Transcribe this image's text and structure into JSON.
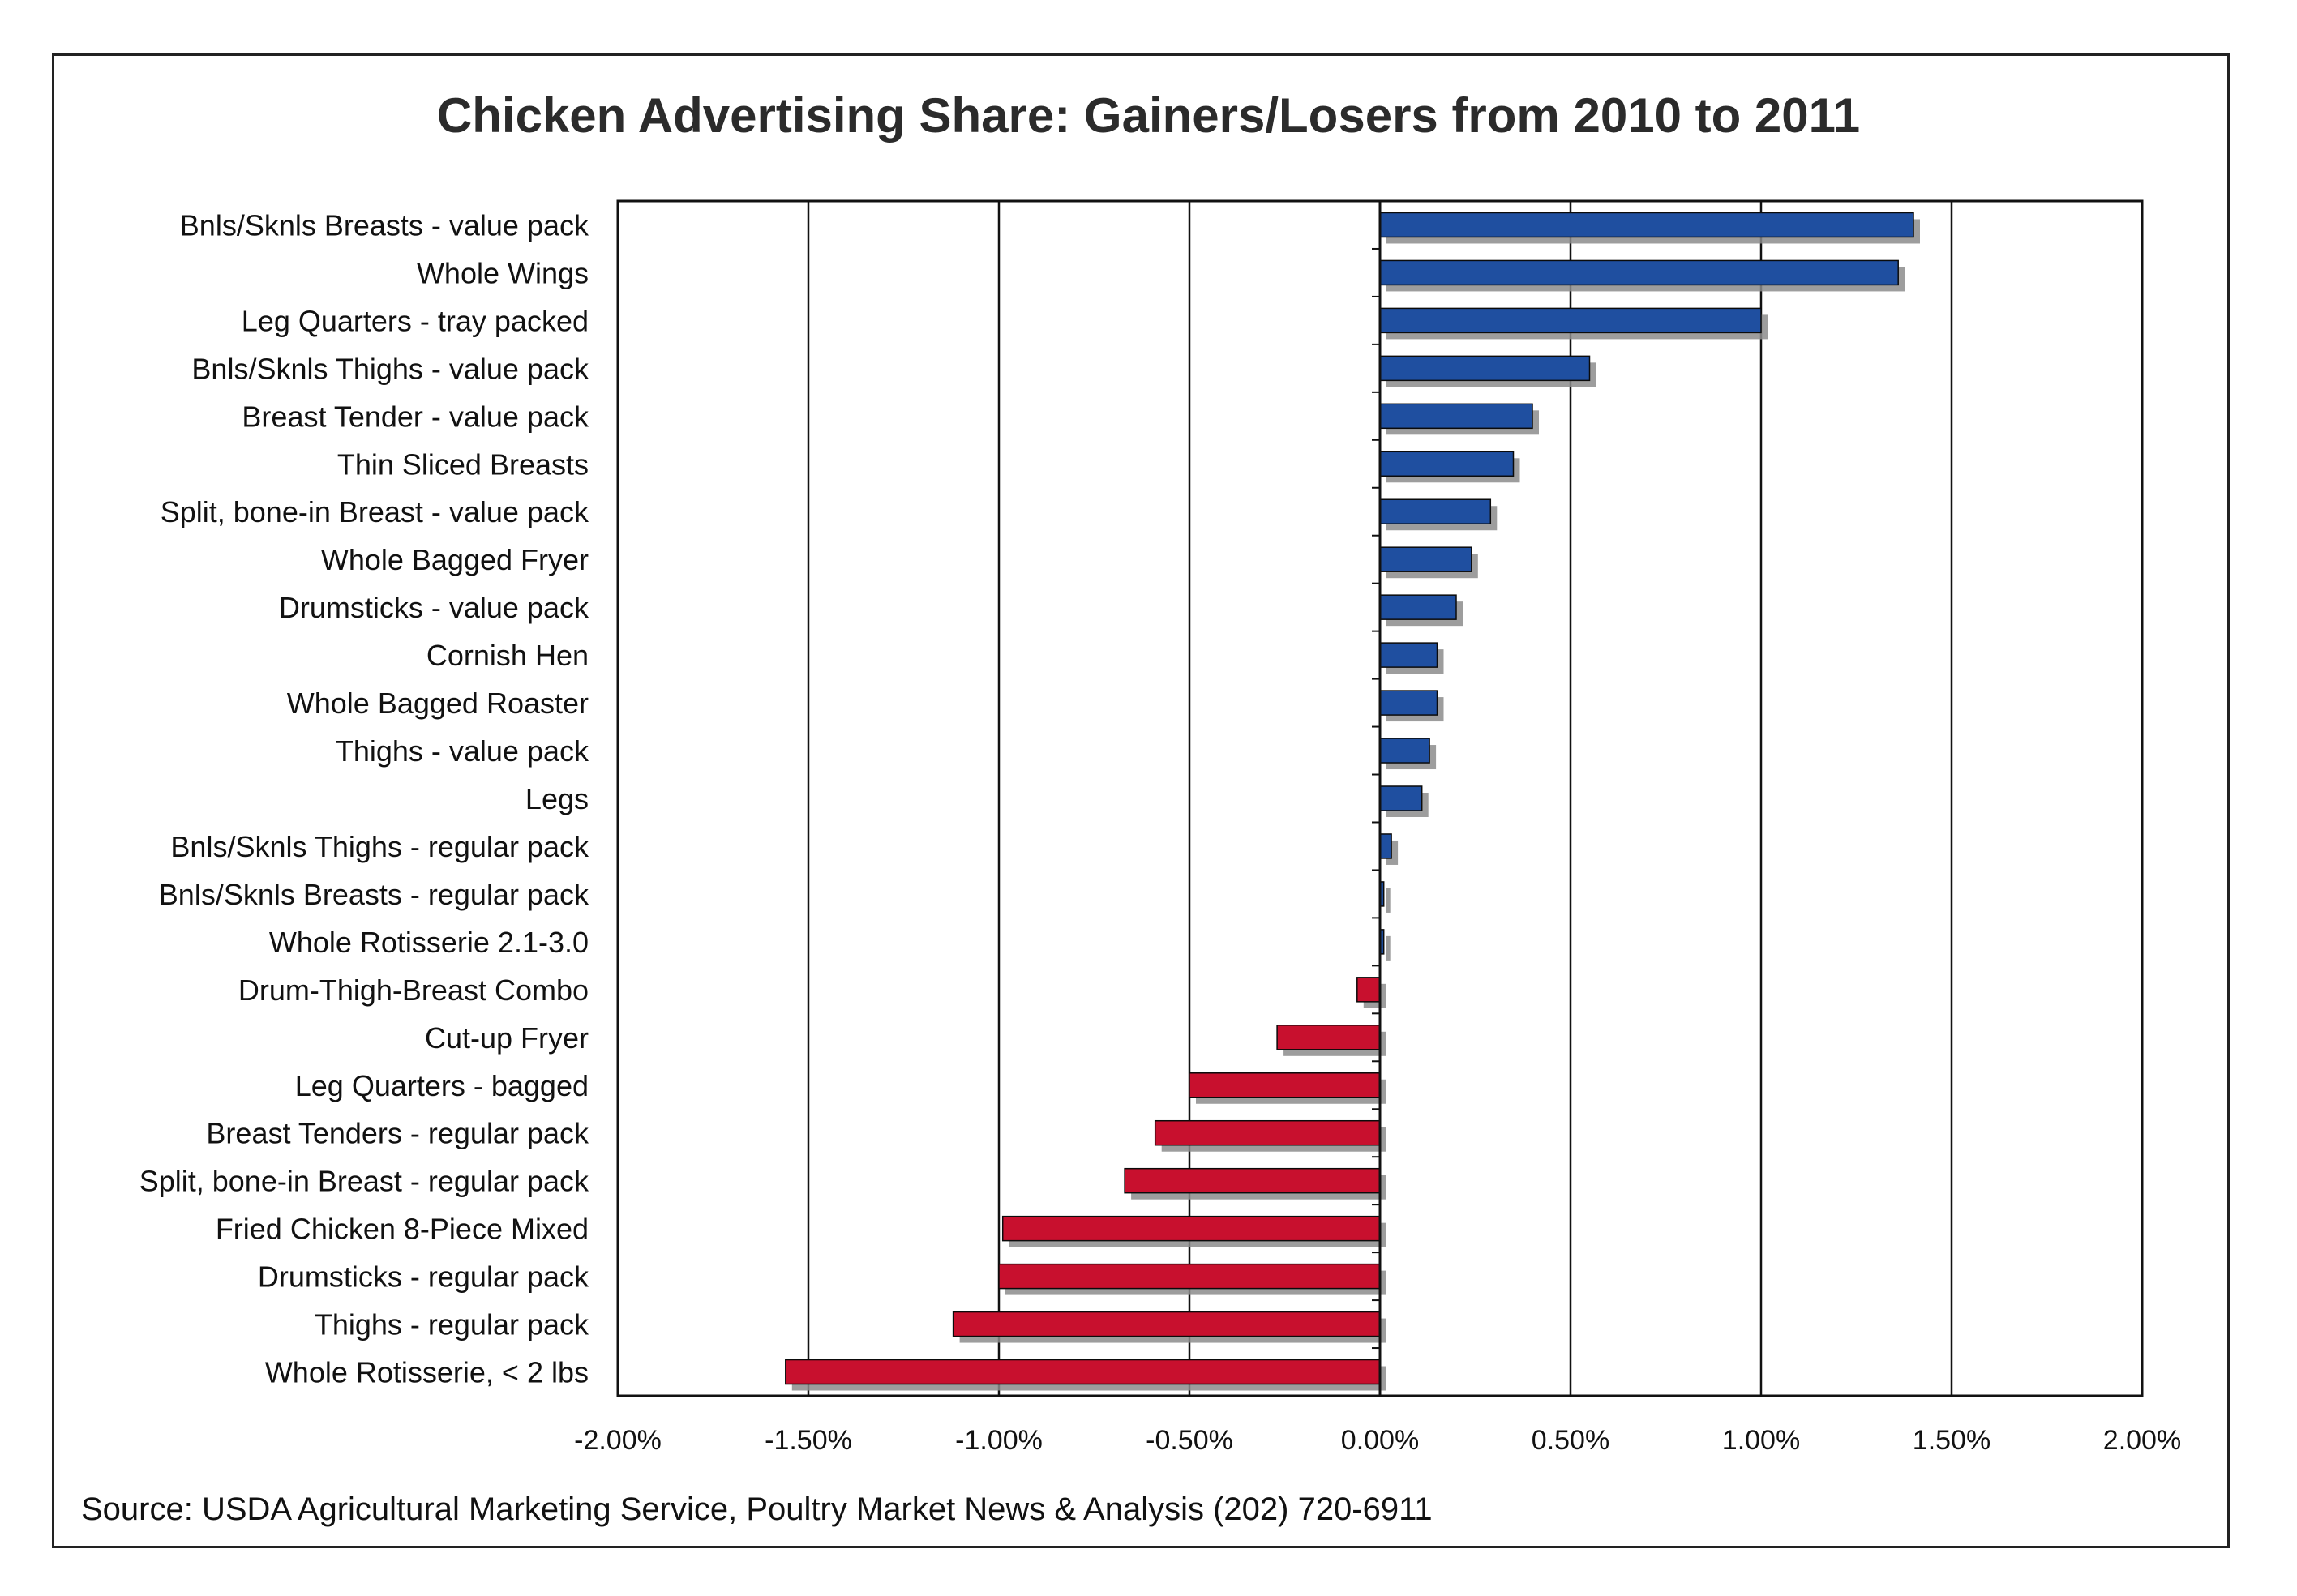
{
  "chart_data": {
    "type": "bar",
    "orientation": "horizontal",
    "title": "Chicken Advertising Share: Gainers/Losers from 2010 to 2011",
    "categories": [
      "Bnls/Sknls Breasts - value pack",
      "Whole Wings",
      "Leg Quarters - tray packed",
      "Bnls/Sknls Thighs - value pack",
      "Breast Tender - value pack",
      "Thin Sliced Breasts",
      "Split, bone-in Breast - value pack",
      "Whole Bagged Fryer",
      "Drumsticks - value pack",
      "Cornish Hen",
      "Whole Bagged Roaster",
      "Thighs - value pack",
      "Legs",
      "Bnls/Sknls Thighs - regular pack",
      "Bnls/Sknls Breasts - regular pack",
      "Whole Rotisserie 2.1-3.0",
      "Drum-Thigh-Breast Combo",
      "Cut-up Fryer",
      "Leg Quarters - bagged",
      "Breast Tenders - regular pack",
      "Split, bone-in Breast - regular pack",
      "Fried Chicken 8-Piece Mixed",
      "Drumsticks - regular pack",
      "Thighs - regular pack",
      "Whole Rotisserie, < 2 lbs"
    ],
    "values": [
      1.4,
      1.36,
      1.0,
      0.55,
      0.4,
      0.35,
      0.29,
      0.24,
      0.2,
      0.15,
      0.15,
      0.13,
      0.11,
      0.03,
      0.01,
      0.01,
      -0.06,
      -0.27,
      -0.5,
      -0.59,
      -0.67,
      -0.99,
      -1.0,
      -1.12,
      -1.56
    ],
    "unit": "%",
    "xlim": [
      -2.0,
      2.0
    ],
    "x_ticks": [
      "-2.00%",
      "-1.50%",
      "-1.00%",
      "-0.50%",
      "0.00%",
      "0.50%",
      "1.00%",
      "1.50%",
      "2.00%"
    ],
    "grid": "vertical",
    "colors": {
      "positive": "#1f4fa0",
      "negative": "#c8102e",
      "shadow": "#8c8c8c"
    }
  },
  "source_note": "Source: USDA Agricultural Marketing Service, Poultry Market News & Analysis (202) 720-6911"
}
